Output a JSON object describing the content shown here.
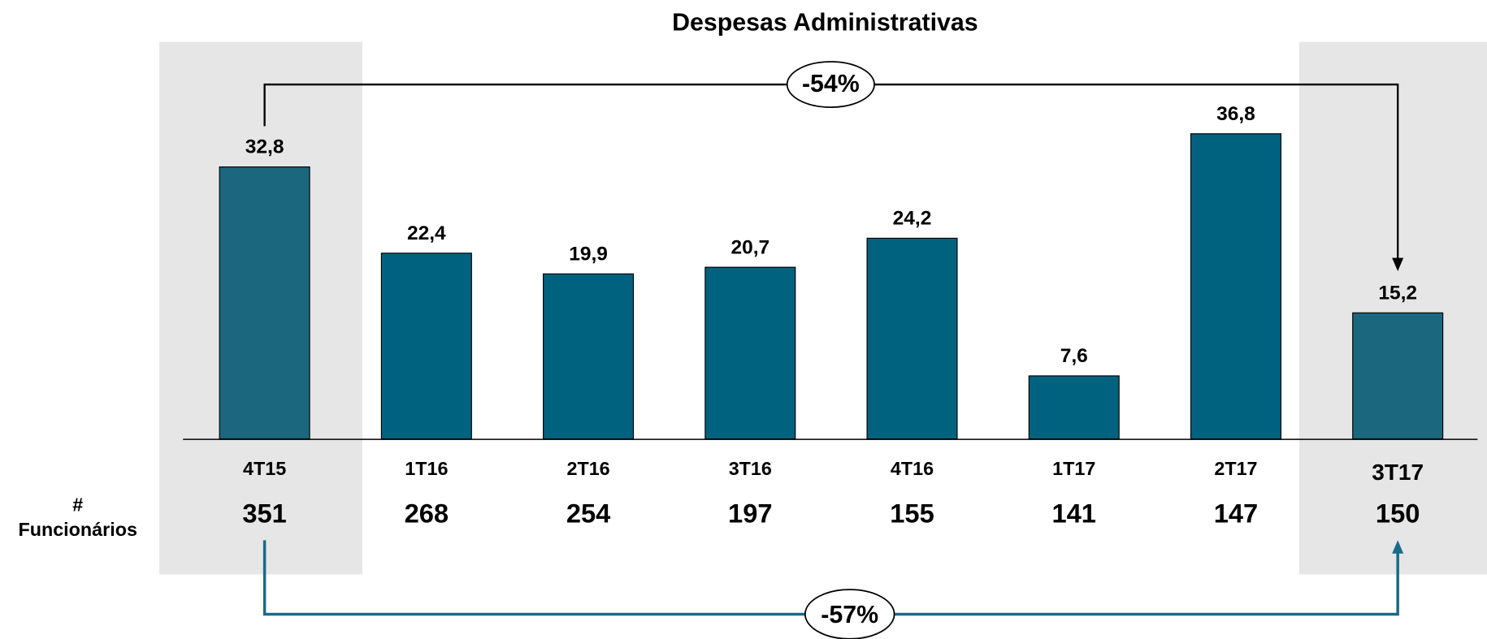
{
  "chart_data": {
    "type": "bar",
    "title": "Despesas Administrativas",
    "categories": [
      "4T15",
      "1T16",
      "2T16",
      "3T16",
      "4T16",
      "1T17",
      "2T17",
      "3T17"
    ],
    "values": [
      32.8,
      22.4,
      19.9,
      20.7,
      24.2,
      7.6,
      36.8,
      15.2
    ],
    "value_labels": [
      "32,8",
      "22,4",
      "19,9",
      "20,7",
      "24,2",
      "7,6",
      "36,8",
      "15,2"
    ],
    "colors": [
      "#1b677e",
      "#00627f",
      "#00627f",
      "#00627f",
      "#00627f",
      "#00627f",
      "#00627f",
      "#1b677e"
    ],
    "ylim": [
      0,
      40
    ],
    "headcount": {
      "label": [
        "#",
        "Funcionários"
      ],
      "values": [
        351,
        268,
        254,
        197,
        155,
        141,
        147,
        150
      ]
    },
    "annotations": [
      {
        "text": "-54%",
        "color": "#000000"
      },
      {
        "text": "-57%",
        "color": "#1a6a88"
      }
    ]
  }
}
